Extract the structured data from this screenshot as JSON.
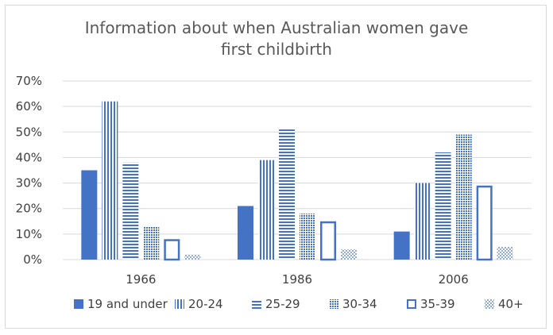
{
  "chart_data": {
    "type": "bar",
    "title_lines": [
      "Information about when Australian women gave",
      "first childbirth"
    ],
    "categories": [
      "1966",
      "1986",
      "2006"
    ],
    "series": [
      {
        "name": "19 and under",
        "values": [
          35,
          21,
          11
        ],
        "pattern": "solid"
      },
      {
        "name": "20-24",
        "values": [
          62,
          39,
          30
        ],
        "pattern": "vertical-lines"
      },
      {
        "name": "25-29",
        "values": [
          38,
          51,
          42
        ],
        "pattern": "horizontal-lines"
      },
      {
        "name": "30-34",
        "values": [
          13,
          18,
          49
        ],
        "pattern": "crosshatch"
      },
      {
        "name": "35-39",
        "values": [
          8,
          15,
          29
        ],
        "pattern": "outline"
      },
      {
        "name": "40+",
        "values": [
          2,
          4,
          5
        ],
        "pattern": "dots"
      }
    ],
    "yticks": [
      "0%",
      "10%",
      "20%",
      "30%",
      "40%",
      "50%",
      "60%",
      "70%"
    ],
    "ylim": [
      0,
      70
    ],
    "grid": true,
    "legend": "bottom",
    "colors": {
      "bar": "#4472c4",
      "grid": "#d9d9d9",
      "text": "#404040"
    }
  }
}
